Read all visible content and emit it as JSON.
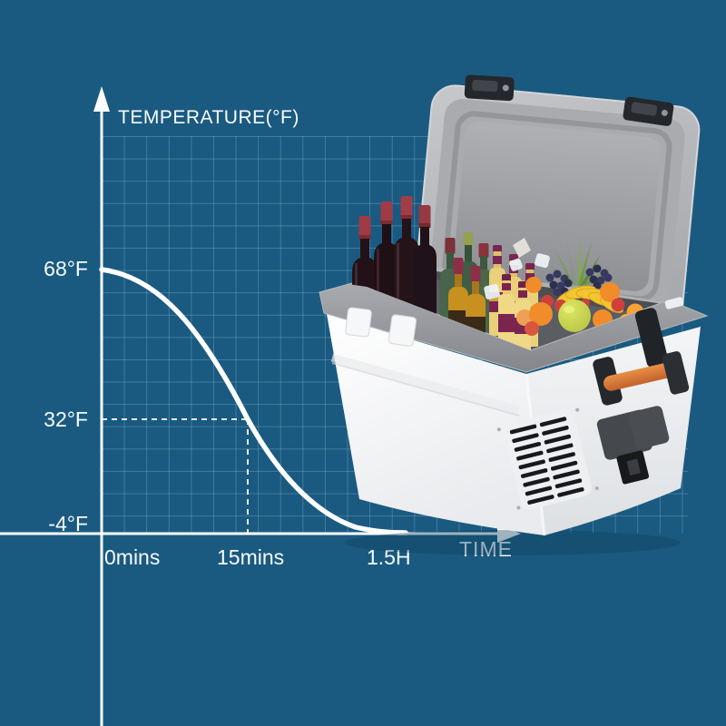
{
  "page": {
    "bg_color": "#1a5a80",
    "grid_color": "rgba(151,203,226,0.30)"
  },
  "chart": {
    "title": "TEMPERATURE(°F)",
    "x_axis_label": "TIME",
    "y_ticks": [
      "68°F",
      "32°F",
      "-4°F"
    ],
    "x_ticks": [
      "0mins",
      "15mins",
      "1.5H"
    ]
  },
  "chart_data": {
    "type": "line",
    "title": "TEMPERATURE(°F)",
    "xlabel": "TIME",
    "ylabel": "TEMPERATURE(°F)",
    "x_tick_labels": [
      "0mins",
      "15mins",
      "1.5H"
    ],
    "y_tick_labels_f": [
      68,
      32,
      -4
    ],
    "series": [
      {
        "name": "cooling curve",
        "points": [
          {
            "x": "0mins",
            "y_f": 68
          },
          {
            "x": "15mins",
            "y_f": 32
          },
          {
            "x": "1.5H",
            "y_f": -4
          }
        ]
      }
    ],
    "curve_shape": "smooth S-shaped cooling decay from 68°F to -4°F",
    "annotations": [
      {
        "type": "dashed-crosshair",
        "x": "15mins",
        "y_f": 32
      }
    ],
    "grid": true,
    "legend_position": "none",
    "line_color": "#ffffff"
  },
  "product": {
    "name": "portable car fridge cooler with open lid, packed with wine bottles, beer bottles, ice and fruit",
    "accent_colors": {
      "body": "#f2f4f6",
      "lid_gray": "#b6b8bb",
      "rim_gray": "#97999d",
      "handle_orange": "#d9773a",
      "vent_black": "#17191c",
      "wine_cap_red": "#9e3b44",
      "beer_label_purple": "#7a2550",
      "banana_yellow": "#f2c531",
      "orange_fruit": "#f18c2b",
      "grape_dark": "#363a5e",
      "pomelo_green": "#c9d455"
    }
  }
}
